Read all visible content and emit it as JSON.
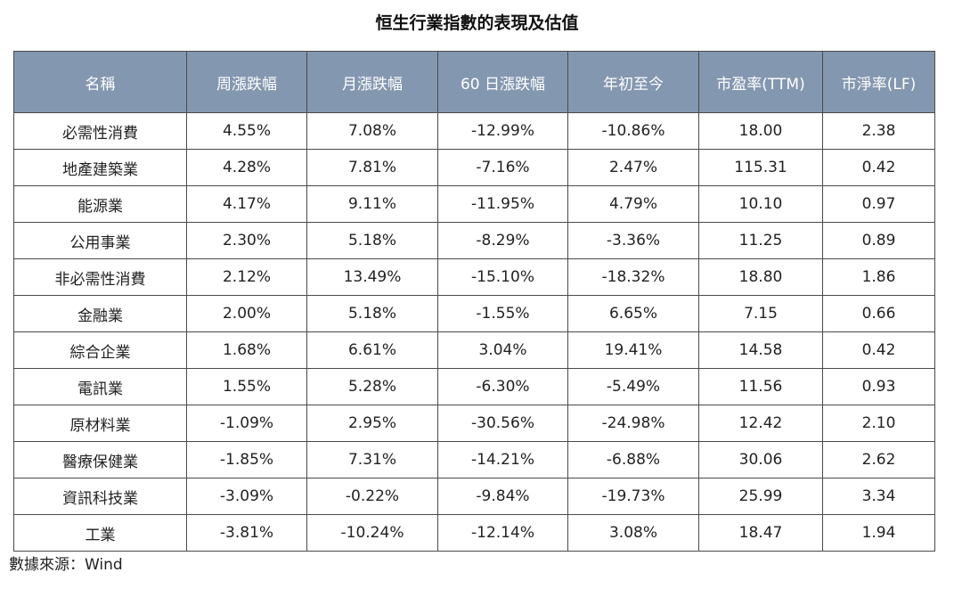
{
  "title": "恒生行業指數的表現及估值",
  "table": {
    "headers": [
      "名稱",
      "周漲跌幅",
      "月漲跌幅",
      "60 日漲跌幅",
      "年初至今",
      "市盈率(TTM)",
      "市淨率(LF)"
    ],
    "rows": [
      [
        "必需性消費",
        "4.55%",
        "7.08%",
        "-12.99%",
        "-10.86%",
        "18.00",
        "2.38"
      ],
      [
        "地產建築業",
        "4.28%",
        "7.81%",
        "-7.16%",
        "2.47%",
        "115.31",
        "0.42"
      ],
      [
        "能源業",
        "4.17%",
        "9.11%",
        "-11.95%",
        "4.79%",
        "10.10",
        "0.97"
      ],
      [
        "公用事業",
        "2.30%",
        "5.18%",
        "-8.29%",
        "-3.36%",
        "11.25",
        "0.89"
      ],
      [
        "非必需性消費",
        "2.12%",
        "13.49%",
        "-15.10%",
        "-18.32%",
        "18.80",
        "1.86"
      ],
      [
        "金融業",
        "2.00%",
        "5.18%",
        "-1.55%",
        "6.65%",
        "7.15",
        "0.66"
      ],
      [
        "綜合企業",
        "1.68%",
        "6.61%",
        "3.04%",
        "19.41%",
        "14.58",
        "0.42"
      ],
      [
        "電訊業",
        "1.55%",
        "5.28%",
        "-6.30%",
        "-5.49%",
        "11.56",
        "0.93"
      ],
      [
        "原材料業",
        "-1.09%",
        "2.95%",
        "-30.56%",
        "-24.98%",
        "12.42",
        "2.10"
      ],
      [
        "醫療保健業",
        "-1.85%",
        "7.31%",
        "-14.21%",
        "-6.88%",
        "30.06",
        "2.62"
      ],
      [
        "資訊科技業",
        "-3.09%",
        "-0.22%",
        "-9.84%",
        "-19.73%",
        "25.99",
        "3.34"
      ],
      [
        "工業",
        "-3.81%",
        "-10.24%",
        "-12.14%",
        "3.08%",
        "18.47",
        "1.94"
      ]
    ]
  },
  "source": "數據來源：Wind",
  "colors": {
    "header_bg": "#8497b0",
    "header_text": "#ffffff",
    "border": "#4a4a4a"
  }
}
